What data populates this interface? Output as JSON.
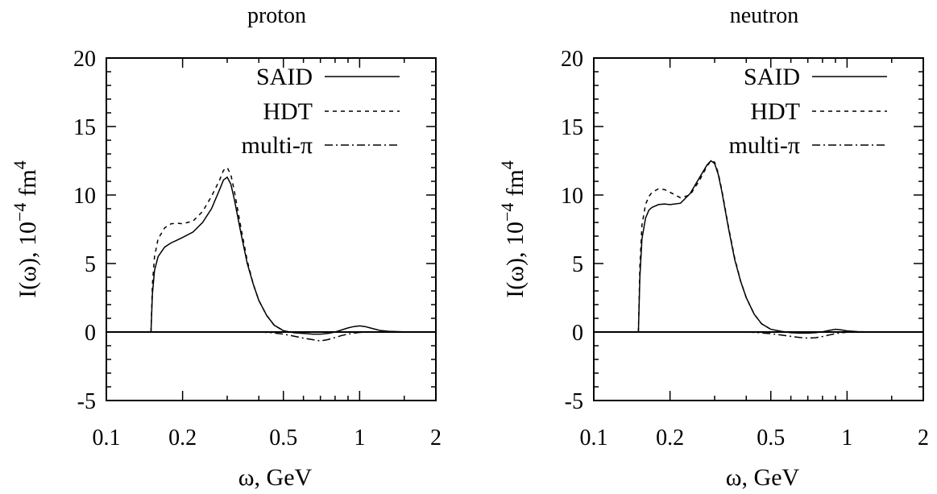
{
  "chart_data": [
    {
      "type": "line",
      "title": "proton",
      "xlabel": "ω,  GeV",
      "ylabel": "I(ω),  10",
      "ylabel_exp": "−4",
      "ylabel_unit": "fm",
      "ylabel_unit_exp": "4",
      "xscale": "log",
      "xlim": [
        0.1,
        2
      ],
      "ylim": [
        -5,
        20
      ],
      "xticks": [
        0.1,
        0.2,
        0.5,
        1,
        2
      ],
      "xtick_labels": [
        "0.1",
        "0.2",
        "0.5",
        "1",
        "2"
      ],
      "yticks": [
        -5,
        0,
        5,
        10,
        15,
        20
      ],
      "ytick_labels": [
        "-5",
        "0",
        "5",
        "10",
        "15",
        "20"
      ],
      "zero_line": true,
      "legend_position": "top-right",
      "series": [
        {
          "name": "SAID",
          "style": "solid",
          "x": [
            0.15,
            0.152,
            0.155,
            0.16,
            0.17,
            0.18,
            0.19,
            0.2,
            0.22,
            0.24,
            0.26,
            0.28,
            0.29,
            0.3,
            0.31,
            0.32,
            0.34,
            0.36,
            0.38,
            0.4,
            0.43,
            0.46,
            0.5,
            0.55,
            0.6,
            0.65,
            0.7,
            0.75,
            0.8,
            0.85,
            0.9,
            0.95,
            1.0,
            1.05,
            1.1,
            1.2,
            1.3,
            1.5,
            2.0
          ],
          "y": [
            0,
            2.8,
            4.5,
            5.5,
            6.2,
            6.5,
            6.7,
            6.9,
            7.3,
            8.0,
            9.0,
            10.4,
            11.1,
            11.3,
            10.8,
            9.7,
            7.2,
            5.0,
            3.5,
            2.3,
            1.2,
            0.5,
            0.1,
            -0.05,
            -0.1,
            -0.15,
            -0.15,
            -0.1,
            0.0,
            0.15,
            0.3,
            0.4,
            0.45,
            0.4,
            0.3,
            0.12,
            0.05,
            0.02,
            0.0
          ]
        },
        {
          "name": "HDT",
          "style": "dashed",
          "x": [
            0.15,
            0.152,
            0.155,
            0.16,
            0.17,
            0.18,
            0.19,
            0.2,
            0.22,
            0.24,
            0.26,
            0.28,
            0.29,
            0.3,
            0.31,
            0.32,
            0.34,
            0.36,
            0.38,
            0.4,
            0.43,
            0.46,
            0.5
          ],
          "y": [
            0,
            3.5,
            5.5,
            6.8,
            7.6,
            7.9,
            7.95,
            7.9,
            8.1,
            8.8,
            9.9,
            11.1,
            11.8,
            12.0,
            11.5,
            10.3,
            7.6,
            5.2,
            3.5,
            2.3,
            1.2,
            0.5,
            0.1
          ]
        },
        {
          "name": "multi-π",
          "style": "dash-dot",
          "x": [
            0.4,
            0.45,
            0.5,
            0.55,
            0.6,
            0.65,
            0.7,
            0.75,
            0.8,
            0.85,
            0.9,
            0.95,
            1.0,
            1.1,
            1.2
          ],
          "y": [
            0,
            -0.05,
            -0.15,
            -0.3,
            -0.45,
            -0.55,
            -0.65,
            -0.55,
            -0.4,
            -0.25,
            -0.15,
            -0.08,
            -0.03,
            0,
            0
          ]
        }
      ]
    },
    {
      "type": "line",
      "title": "neutron",
      "xlabel": "ω,  GeV",
      "ylabel": "I(ω),  10",
      "ylabel_exp": "−4",
      "ylabel_unit": "fm",
      "ylabel_unit_exp": "4",
      "xscale": "log",
      "xlim": [
        0.1,
        2
      ],
      "ylim": [
        -5,
        20
      ],
      "xticks": [
        0.1,
        0.2,
        0.5,
        1,
        2
      ],
      "xtick_labels": [
        "0.1",
        "0.2",
        "0.5",
        "1",
        "2"
      ],
      "yticks": [
        -5,
        0,
        5,
        10,
        15,
        20
      ],
      "ytick_labels": [
        "-5",
        "0",
        "5",
        "10",
        "15",
        "20"
      ],
      "zero_line": true,
      "legend_position": "top-right",
      "series": [
        {
          "name": "SAID",
          "style": "solid",
          "x": [
            0.15,
            0.152,
            0.155,
            0.16,
            0.165,
            0.17,
            0.18,
            0.19,
            0.2,
            0.22,
            0.24,
            0.26,
            0.28,
            0.29,
            0.3,
            0.31,
            0.32,
            0.34,
            0.36,
            0.38,
            0.4,
            0.43,
            0.46,
            0.5,
            0.55,
            0.6,
            0.65,
            0.7,
            0.75,
            0.8,
            0.85,
            0.9,
            0.95,
            1.0,
            1.1,
            1.2,
            1.5,
            2.0
          ],
          "y": [
            0,
            4.0,
            6.8,
            8.3,
            8.9,
            9.1,
            9.3,
            9.35,
            9.3,
            9.4,
            10.1,
            11.2,
            12.2,
            12.5,
            12.3,
            11.5,
            10.3,
            7.6,
            5.3,
            3.7,
            2.5,
            1.3,
            0.6,
            0.2,
            0.05,
            -0.05,
            -0.08,
            -0.08,
            -0.05,
            0.02,
            0.12,
            0.2,
            0.15,
            0.08,
            0.03,
            0.01,
            0.0,
            0.0
          ]
        },
        {
          "name": "HDT",
          "style": "dashed",
          "x": [
            0.15,
            0.152,
            0.155,
            0.16,
            0.165,
            0.17,
            0.18,
            0.19,
            0.2,
            0.22,
            0.24,
            0.26,
            0.28,
            0.29,
            0.3,
            0.31,
            0.32,
            0.34,
            0.36,
            0.38,
            0.4,
            0.43,
            0.46,
            0.5
          ],
          "y": [
            0,
            4.8,
            7.8,
            9.3,
            9.9,
            10.2,
            10.45,
            10.4,
            10.2,
            9.8,
            10.0,
            11.0,
            12.1,
            12.5,
            12.4,
            11.6,
            10.4,
            7.7,
            5.4,
            3.7,
            2.5,
            1.3,
            0.6,
            0.2
          ]
        },
        {
          "name": "multi-π",
          "style": "dash-dot",
          "x": [
            0.4,
            0.45,
            0.5,
            0.55,
            0.6,
            0.65,
            0.7,
            0.75,
            0.8,
            0.85,
            0.9,
            0.95,
            1.0,
            1.1,
            1.2
          ],
          "y": [
            0,
            -0.05,
            -0.12,
            -0.22,
            -0.32,
            -0.4,
            -0.45,
            -0.42,
            -0.33,
            -0.22,
            -0.12,
            -0.06,
            -0.02,
            0,
            0
          ]
        }
      ]
    }
  ]
}
